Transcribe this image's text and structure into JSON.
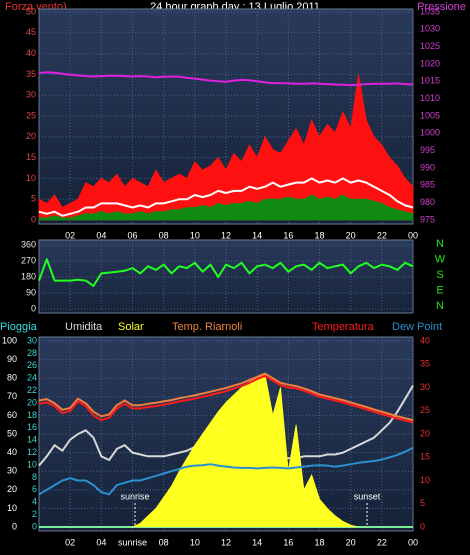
{
  "chart_data": [
    {
      "type": "line",
      "title": "24 hour graph day : 13 Luglio 2011",
      "ylabel": "Forza vento)",
      "y2label": "Pressione",
      "xlim": [
        0,
        24
      ],
      "xticks": [
        {
          "value": 2,
          "label": "02"
        },
        {
          "value": 4,
          "label": "04"
        },
        {
          "value": 6,
          "label": "06"
        },
        {
          "value": 8,
          "label": "08"
        },
        10,
        12,
        14,
        16,
        18,
        20,
        22,
        {
          "value": 24,
          "label": "00"
        }
      ],
      "ylim": [
        0,
        50
      ],
      "yticks": [
        0,
        5,
        10,
        15,
        20,
        25,
        30,
        35,
        40,
        45,
        50
      ],
      "ycolor": "#e04848",
      "y2lim": [
        975,
        1035
      ],
      "y2ticks": [
        975,
        980,
        985,
        990,
        995,
        1000,
        1005,
        1010,
        1015,
        1020,
        1025,
        1030,
        1035
      ],
      "y2color": "#d040d0",
      "grid": true,
      "x": [
        0,
        0.5,
        1,
        1.5,
        2,
        2.5,
        3,
        3.5,
        4,
        4.5,
        5,
        5.5,
        6,
        6.5,
        7,
        7.5,
        8,
        8.5,
        9,
        9.5,
        10,
        10.5,
        11,
        11.5,
        12,
        12.5,
        13,
        13.5,
        14,
        14.5,
        15,
        15.5,
        16,
        16.5,
        17,
        17.5,
        18,
        18.5,
        19,
        19.5,
        20,
        20.5,
        21,
        21.5,
        22,
        22.5,
        23,
        23.5,
        24
      ],
      "series": [
        {
          "color": "#ff1010",
          "fill": true,
          "values": [
            5,
            4,
            6,
            3,
            4,
            5,
            9,
            8,
            10,
            9,
            11,
            8,
            10,
            9,
            8,
            12,
            9,
            10,
            11,
            10,
            14,
            12,
            13,
            15,
            12,
            16,
            14,
            18,
            15,
            20,
            17,
            16,
            19,
            22,
            18,
            24,
            20,
            23,
            21,
            26,
            22,
            35,
            24,
            20,
            18,
            15,
            13,
            10,
            8
          ]
        },
        {
          "color": "#108a10",
          "fill": true,
          "values": [
            0.5,
            0.5,
            1,
            0.5,
            0.5,
            1,
            1.5,
            1.5,
            2,
            1.5,
            2,
            1.5,
            1.5,
            2,
            1.5,
            2,
            2,
            2.5,
            2.5,
            3,
            3,
            3.5,
            3,
            4,
            3.5,
            4,
            4,
            4.5,
            4,
            5,
            5,
            5,
            5.5,
            5,
            5,
            6,
            5,
            5.5,
            5,
            6,
            5,
            5,
            5,
            4.5,
            4,
            3,
            2.5,
            2,
            1.5
          ]
        },
        {
          "color": "#ffffff",
          "values": [
            2,
            1.5,
            2,
            1,
            1.5,
            2,
            3,
            3,
            4,
            4,
            4,
            3.5,
            3,
            3.5,
            3,
            4,
            4,
            4.5,
            5,
            5,
            6,
            5.5,
            6,
            7,
            6.5,
            7,
            7,
            8,
            7.5,
            8,
            9,
            8,
            8.5,
            9,
            9,
            10,
            9,
            9.5,
            9,
            10,
            9,
            9.5,
            9,
            8,
            7,
            6,
            4.5,
            3.5,
            3
          ]
        },
        {
          "color": "#e020e0",
          "axis": "y2",
          "values": [
            1017.4,
            1017.6,
            1017.5,
            1017.2,
            1016.9,
            1016.7,
            1016.5,
            1016.4,
            1016.5,
            1016.6,
            1016.6,
            1016.5,
            1016.4,
            1016.5,
            1016.4,
            1016.2,
            1016.3,
            1016.4,
            1016.3,
            1016.0,
            1015.8,
            1015.5,
            1015.2,
            1015.0,
            1014.9,
            1015.2,
            1015.4,
            1015.3,
            1015.0,
            1014.7,
            1014.5,
            1014.5,
            1014.4,
            1014.3,
            1014.3,
            1014.4,
            1014.3,
            1014.2,
            1014.1,
            1014.0,
            1013.9,
            1014.0,
            1014.2,
            1014.3,
            1014.3,
            1014.3,
            1014.4,
            1014.2,
            1014.1
          ]
        }
      ]
    },
    {
      "type": "line",
      "xlim": [
        0,
        24
      ],
      "xticks": [
        2,
        4,
        6,
        8,
        10,
        12,
        14,
        16,
        18,
        20,
        22,
        24
      ],
      "xtick_labels": false,
      "ylim": [
        0,
        360
      ],
      "yticks": [
        0,
        90,
        180,
        270,
        360
      ],
      "ycolor": "#e8e8e8",
      "grid": true,
      "compass": [
        "N",
        "W",
        "S",
        "E",
        "N"
      ],
      "compass_color": "#20e020",
      "x": [
        0,
        0.5,
        1,
        1.5,
        2,
        2.5,
        3,
        3.5,
        4,
        4.5,
        5,
        5.5,
        6,
        6.5,
        7,
        7.5,
        8,
        8.5,
        9,
        9.5,
        10,
        10.5,
        11,
        11.5,
        12,
        12.5,
        13,
        13.5,
        14,
        14.5,
        15,
        15.5,
        16,
        16.5,
        17,
        17.5,
        18,
        18.5,
        19,
        19.5,
        20,
        20.5,
        21,
        21.5,
        22,
        22.5,
        23,
        23.5,
        24
      ],
      "series": [
        {
          "color": "#20ff20",
          "values": [
            160,
            280,
            160,
            160,
            160,
            165,
            160,
            130,
            200,
            205,
            210,
            215,
            230,
            200,
            240,
            220,
            250,
            200,
            240,
            230,
            260,
            210,
            250,
            180,
            250,
            230,
            260,
            200,
            240,
            250,
            230,
            260,
            210,
            240,
            250,
            220,
            260,
            230,
            240,
            250,
            200,
            240,
            260,
            230,
            250,
            240,
            220,
            260,
            240
          ]
        }
      ]
    },
    {
      "type": "line",
      "xlim": [
        0,
        24
      ],
      "xticks": [
        {
          "value": 2,
          "label": "02"
        },
        {
          "value": 4,
          "label": "04"
        },
        {
          "value": 6,
          "label": "sunrise"
        },
        {
          "value": 8,
          "label": "08"
        },
        10,
        12,
        14,
        16,
        18,
        20,
        22,
        {
          "value": 24,
          "label": "00"
        }
      ],
      "ylim": [
        0,
        100
      ],
      "yticks": [
        0,
        10,
        20,
        30,
        40,
        50,
        60,
        70,
        80,
        90,
        100
      ],
      "ycolor": "#ffffff",
      "y3lim": [
        0,
        30
      ],
      "y3ticks": [
        0,
        2,
        4,
        6,
        8,
        10,
        12,
        14,
        16,
        18,
        20,
        22,
        24,
        26,
        28,
        30
      ],
      "y3color": "#40d8d8",
      "y2lim": [
        0,
        40
      ],
      "y2ticks": [
        0,
        5,
        10,
        15,
        20,
        25,
        30,
        35,
        40
      ],
      "y2color": "#e83030",
      "grid": true,
      "annotations": [
        {
          "text": "sunrise",
          "x": 6.16
        },
        {
          "text": "sunset",
          "x": 21.05
        }
      ],
      "x": [
        0,
        0.5,
        1,
        1.5,
        2,
        2.5,
        3,
        3.5,
        4,
        4.5,
        5,
        5.5,
        6,
        6.5,
        7,
        7.5,
        8,
        8.5,
        9,
        9.5,
        10,
        10.5,
        11,
        11.5,
        12,
        12.5,
        13,
        13.5,
        14,
        14.5,
        15,
        15.5,
        16,
        16.5,
        17,
        17.5,
        18,
        18.5,
        19,
        19.5,
        20,
        20.5,
        21,
        21.5,
        22,
        22.5,
        23,
        23.5,
        24
      ],
      "series": [
        {
          "name": "Pioggia",
          "color": "#30e0e0",
          "axis": "y3",
          "values": [
            0,
            0,
            0,
            0,
            0,
            0,
            0,
            0,
            0,
            0,
            0,
            0,
            0,
            0,
            0,
            0,
            0,
            0,
            0,
            0,
            0,
            0,
            0,
            0,
            0,
            0,
            0,
            0,
            0,
            0,
            0,
            0,
            0,
            0,
            0,
            0,
            0,
            0,
            0,
            0,
            0,
            0,
            0,
            0,
            0,
            0,
            0,
            0,
            0
          ]
        },
        {
          "name": "Umidita",
          "color": "#d8d8d8",
          "values": [
            33,
            38,
            44,
            41,
            47,
            50,
            52,
            48,
            38,
            36,
            42,
            44,
            40,
            39,
            38,
            38,
            38,
            39,
            40,
            41,
            43,
            44,
            42,
            41,
            41,
            40,
            40,
            39,
            39,
            38,
            38,
            37,
            37,
            37,
            38,
            38,
            38,
            39,
            39,
            40,
            42,
            44,
            46,
            48,
            52,
            56,
            62,
            69,
            76
          ]
        },
        {
          "name": "Solar",
          "color": "#ffff20",
          "fill": true,
          "values": [
            0,
            0,
            0,
            0,
            0,
            0,
            0,
            0,
            0,
            0,
            0,
            0,
            0,
            2,
            6,
            10,
            16,
            22,
            30,
            37,
            44,
            50,
            56,
            62,
            67,
            71,
            75,
            78,
            80,
            82,
            60,
            75,
            30,
            55,
            20,
            28,
            15,
            10,
            6,
            3,
            1,
            0,
            0,
            0,
            0,
            0,
            0,
            0,
            0
          ]
        },
        {
          "name": "Temp. Riarnoli",
          "color": "#f08040",
          "axis": "y2",
          "values": [
            27.2,
            27.5,
            26.6,
            25.2,
            25.6,
            27.6,
            26.6,
            24.8,
            23.8,
            24.2,
            26.2,
            27.2,
            26.2,
            26.2,
            26.5,
            26.7,
            27,
            27.3,
            27.7,
            28,
            28.3,
            28.7,
            29.1,
            29.5,
            29.9,
            30.4,
            30.9,
            31.6,
            32.3,
            33,
            32,
            31,
            30.6,
            30.3,
            29.8,
            29.2,
            28.5,
            28.1,
            27.7,
            27.3,
            26.8,
            26.3,
            25.8,
            25.3,
            24.8,
            24.3,
            23.8,
            23.4,
            23
          ]
        },
        {
          "name": "Temperatura",
          "color": "#ff1a1a",
          "axis": "y2",
          "values": [
            26.5,
            26.8,
            26,
            24.5,
            25,
            27,
            26,
            24,
            23,
            23.5,
            25.5,
            26.5,
            25.5,
            25.5,
            25.8,
            26,
            26.3,
            26.6,
            27,
            27.3,
            27.6,
            28,
            28.4,
            28.8,
            29.2,
            29.8,
            30.3,
            31,
            31.8,
            32.5,
            31.5,
            30.5,
            30,
            29.8,
            29.3,
            28.7,
            28,
            27.6,
            27.2,
            26.8,
            26.3,
            25.8,
            25.3,
            24.8,
            24.3,
            23.8,
            23.3,
            22.9,
            22.5
          ]
        },
        {
          "name": "Dew Point",
          "color": "#2a90d0",
          "axis": "y2",
          "values": [
            7,
            8,
            9,
            10,
            10.5,
            10,
            10,
            9,
            7.5,
            7,
            9,
            9.5,
            10,
            10,
            10.5,
            11,
            11.5,
            12,
            12.5,
            13,
            13.2,
            13.3,
            13.5,
            13.2,
            13,
            12.8,
            12.7,
            12.7,
            12.6,
            12.7,
            12.8,
            12.7,
            12.6,
            12.8,
            13,
            13.2,
            13.3,
            13.2,
            13,
            13.2,
            13.5,
            13.8,
            14,
            14.2,
            14.5,
            15,
            15.5,
            16.2,
            17
          ]
        }
      ]
    }
  ]
}
